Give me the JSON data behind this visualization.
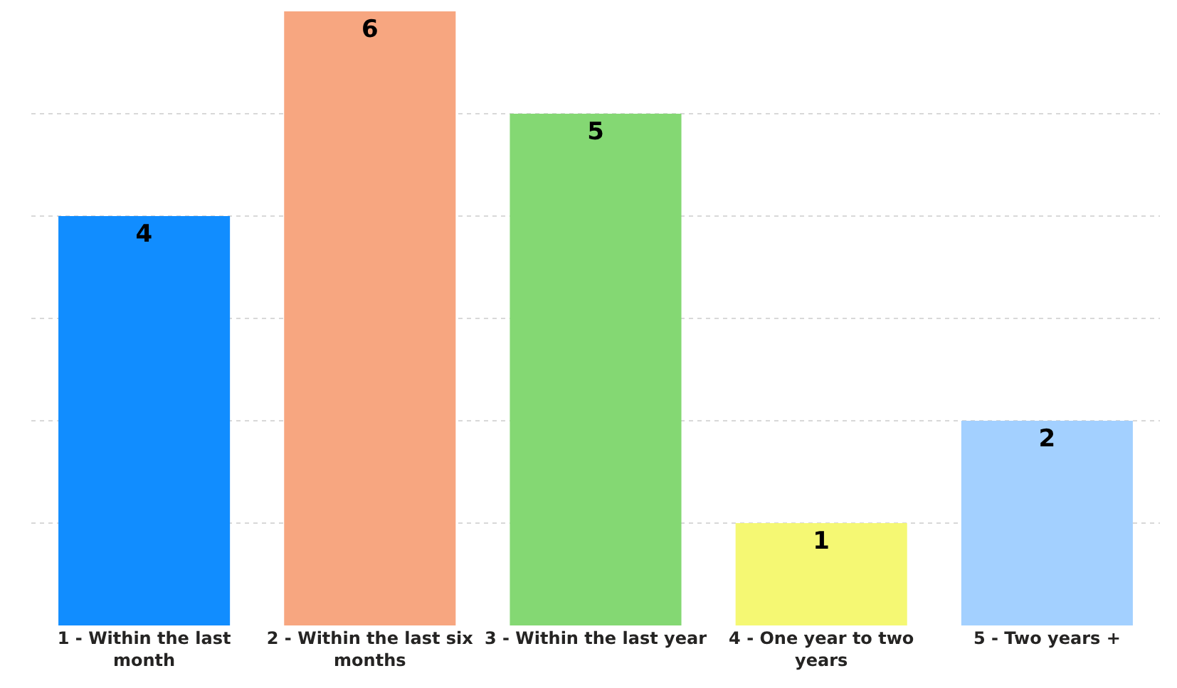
{
  "chart_data": {
    "type": "bar",
    "categories": [
      "1 - Within the last month",
      "2 - Within the last six months",
      "3 - Within the last year",
      "4 - One year to two years",
      "5 - Two years +"
    ],
    "values": [
      4,
      6,
      5,
      1,
      2
    ],
    "colors": [
      "#118dff",
      "#f7a680",
      "#84d873",
      "#f5f873",
      "#a3d0ff"
    ],
    "ylim": [
      0,
      6
    ],
    "yticks": [
      {
        "value": 1,
        "label": null
      },
      {
        "value": 2,
        "label": null
      },
      {
        "value": 3,
        "label": null
      },
      {
        "value": 4,
        "label": null
      },
      {
        "value": 5,
        "label": null
      }
    ],
    "grid": "y",
    "tick_labels": "x",
    "data_labels": true
  }
}
